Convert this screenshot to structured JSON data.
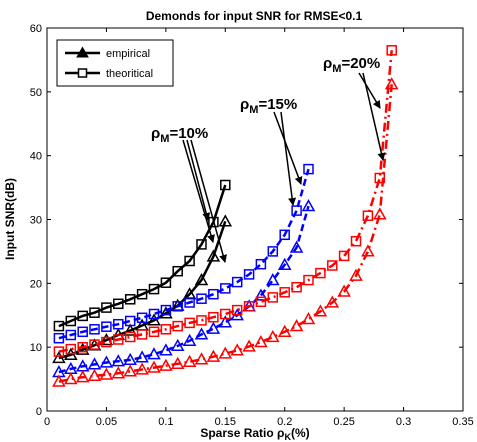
{
  "chart_data": {
    "type": "line",
    "title": "Demonds for input SNR for RMSE<0.1",
    "xlabel_main": "Sparse Ratio ",
    "xlabel_rho": "ρ",
    "xlabel_sub": "K",
    "xlabel_unit": "(%)",
    "ylabel": "Input SNR(dB)",
    "xlim": [
      0,
      0.35
    ],
    "ylim": [
      0,
      60
    ],
    "x_ticks": [
      "0",
      "0.05",
      "0.1",
      "0.15",
      "0.2",
      "0.25",
      "0.3",
      "0.35"
    ],
    "y_ticks": [
      "0",
      "10",
      "20",
      "30",
      "40",
      "50",
      "60"
    ],
    "grid": false,
    "legend": {
      "position": "top-left",
      "entries": [
        {
          "label": "empirical",
          "marker": "triangle"
        },
        {
          "label": "theoritical",
          "marker": "square"
        }
      ]
    },
    "annotations": [
      {
        "rho": "ρ",
        "sub": "M",
        "text": "=10%"
      },
      {
        "rho": "ρ",
        "sub": "M",
        "text": "=15%"
      },
      {
        "rho": "ρ",
        "sub": "M",
        "text": "=20%"
      }
    ],
    "series": [
      {
        "group": "ρM=10%",
        "kind": "empirical",
        "color": "#000000",
        "line": "solid",
        "marker": "triangle",
        "x": [
          0.01,
          0.02,
          0.03,
          0.04,
          0.05,
          0.06,
          0.07,
          0.08,
          0.09,
          0.1,
          0.11,
          0.12,
          0.13,
          0.14,
          0.15
        ],
        "y": [
          8.3,
          8.8,
          9.6,
          10.3,
          11.1,
          11.9,
          12.6,
          13.4,
          14.2,
          15.3,
          16.5,
          18.3,
          20.5,
          24.2,
          29.7
        ]
      },
      {
        "group": "ρM=10%",
        "kind": "theoritical",
        "color": "#000000",
        "line": "solid",
        "marker": "square",
        "x": [
          0.01,
          0.02,
          0.03,
          0.04,
          0.05,
          0.06,
          0.07,
          0.08,
          0.09,
          0.1,
          0.11,
          0.12,
          0.13,
          0.14,
          0.15
        ],
        "y": [
          13.3,
          14.1,
          14.9,
          15.4,
          16.2,
          16.8,
          17.5,
          18.3,
          19.1,
          20.1,
          21.9,
          23.5,
          26.1,
          29.6,
          35.4
        ]
      },
      {
        "group": "ρM=15%",
        "kind": "empirical",
        "color": "#0000ff",
        "line": "dashed",
        "marker": "triangle",
        "x": [
          0.01,
          0.02,
          0.03,
          0.04,
          0.05,
          0.06,
          0.07,
          0.08,
          0.09,
          0.1,
          0.11,
          0.12,
          0.13,
          0.14,
          0.15,
          0.16,
          0.17,
          0.18,
          0.19,
          0.2,
          0.21,
          0.22
        ],
        "y": [
          6.1,
          6.6,
          7.0,
          7.3,
          7.6,
          7.8,
          8.0,
          8.4,
          8.9,
          9.5,
          10.2,
          11.0,
          12.0,
          12.9,
          13.9,
          15.0,
          16.4,
          18.1,
          20.5,
          22.9,
          25.6,
          32.1
        ]
      },
      {
        "group": "ρM=15%",
        "kind": "theoritical",
        "color": "#0000ff",
        "line": "dashed",
        "marker": "square",
        "x": [
          0.01,
          0.02,
          0.03,
          0.04,
          0.05,
          0.06,
          0.07,
          0.08,
          0.09,
          0.1,
          0.11,
          0.12,
          0.13,
          0.14,
          0.15,
          0.16,
          0.17,
          0.18,
          0.19,
          0.2,
          0.21,
          0.22
        ],
        "y": [
          11.4,
          11.9,
          12.4,
          12.8,
          13.2,
          13.6,
          14.1,
          14.6,
          15.2,
          15.8,
          16.4,
          17.0,
          17.6,
          18.3,
          19.2,
          20.2,
          21.4,
          23.0,
          25.0,
          27.6,
          31.4,
          37.9
        ]
      },
      {
        "group": "ρM=20%",
        "kind": "empirical",
        "color": "#ff0000",
        "line": "dashdot",
        "marker": "triangle",
        "x": [
          0.01,
          0.02,
          0.03,
          0.04,
          0.05,
          0.06,
          0.07,
          0.08,
          0.09,
          0.1,
          0.11,
          0.12,
          0.13,
          0.14,
          0.15,
          0.16,
          0.17,
          0.18,
          0.19,
          0.2,
          0.21,
          0.22,
          0.23,
          0.24,
          0.25,
          0.26,
          0.27,
          0.28,
          0.29
        ],
        "y": [
          4.6,
          5.0,
          5.3,
          5.5,
          5.7,
          5.9,
          6.2,
          6.5,
          6.8,
          7.1,
          7.4,
          7.7,
          8.1,
          8.5,
          9.0,
          9.5,
          10.1,
          10.8,
          11.6,
          12.4,
          13.3,
          14.4,
          15.6,
          17.0,
          18.7,
          21.2,
          25.0,
          30.8,
          51.2
        ]
      },
      {
        "group": "ρM=20%",
        "kind": "theoritical",
        "color": "#ff0000",
        "line": "dashdot",
        "marker": "square",
        "x": [
          0.01,
          0.02,
          0.03,
          0.04,
          0.05,
          0.06,
          0.07,
          0.08,
          0.09,
          0.1,
          0.11,
          0.12,
          0.13,
          0.14,
          0.15,
          0.16,
          0.17,
          0.18,
          0.19,
          0.2,
          0.21,
          0.22,
          0.23,
          0.24,
          0.25,
          0.26,
          0.27,
          0.28,
          0.29
        ],
        "y": [
          9.3,
          9.7,
          10.0,
          10.4,
          10.8,
          11.2,
          11.6,
          12.0,
          12.4,
          12.8,
          13.3,
          13.8,
          14.2,
          14.7,
          15.2,
          15.8,
          16.4,
          17.1,
          17.8,
          18.6,
          19.4,
          20.5,
          21.6,
          22.8,
          24.3,
          26.6,
          30.6,
          36.5,
          56.5
        ]
      }
    ]
  }
}
